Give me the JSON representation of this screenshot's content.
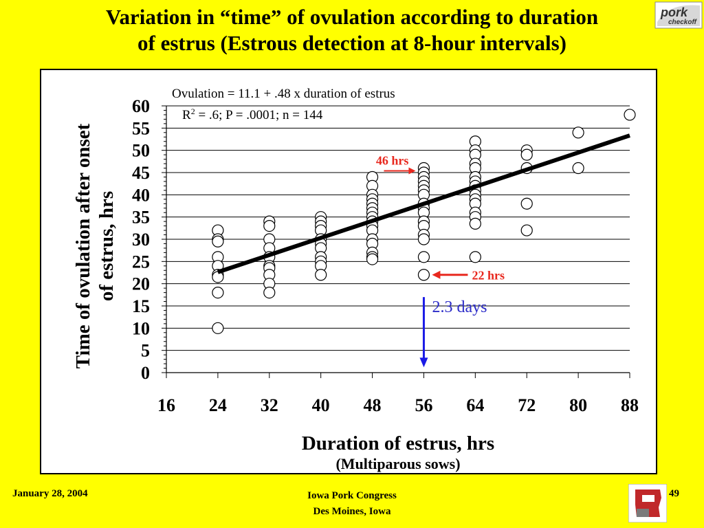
{
  "title": {
    "line1": "Variation in “time” of ovulation according to duration",
    "line2": "of estrus (Estrous detection at 8-hour intervals)"
  },
  "logo_text": "pork checkoff",
  "footer": {
    "date": "January 28, 2004",
    "event": "Iowa Pork Congress",
    "location": "Des Moines, Iowa",
    "page": "49"
  },
  "colors": {
    "background": "#FFFF00",
    "arrow_red": "#E8281E",
    "arrow_blue": "#1A1AE6",
    "annot_red_text": "#E8281E",
    "annot_blue_text": "#2B2BC8"
  },
  "chart_data": {
    "type": "scatter",
    "xlabel": "Duration of estrus, hrs",
    "xlabel_sub": "(Multiparous sows)",
    "ylabel_line1": "Time of ovulation after onset",
    "ylabel_line2": "of estrus, hrs",
    "xlim": [
      16,
      88
    ],
    "ylim": [
      0,
      60
    ],
    "x_ticks": [
      16,
      24,
      32,
      40,
      48,
      56,
      64,
      72,
      80,
      88
    ],
    "y_ticks": [
      0,
      5,
      10,
      15,
      20,
      25,
      30,
      35,
      40,
      45,
      50,
      55,
      60
    ],
    "grid": "horizontal",
    "equation": "Ovulation = 11.1 + .48 x duration of estrus",
    "stats": {
      "r2_label": "R",
      "r2_sup": "2",
      "rest": " = .6; P = .0001; n = 144"
    },
    "regression": {
      "intercept": 11.1,
      "slope": 0.48,
      "x_range": [
        24,
        88
      ]
    },
    "points": [
      {
        "x": 24,
        "y": 32
      },
      {
        "x": 24,
        "y": 30
      },
      {
        "x": 24,
        "y": 29.5
      },
      {
        "x": 24,
        "y": 26
      },
      {
        "x": 24,
        "y": 24
      },
      {
        "x": 24,
        "y": 22
      },
      {
        "x": 24,
        "y": 21.5
      },
      {
        "x": 24,
        "y": 18
      },
      {
        "x": 24,
        "y": 10
      },
      {
        "x": 32,
        "y": 34
      },
      {
        "x": 32,
        "y": 33
      },
      {
        "x": 32,
        "y": 30
      },
      {
        "x": 32,
        "y": 28
      },
      {
        "x": 32,
        "y": 26
      },
      {
        "x": 32,
        "y": 24
      },
      {
        "x": 32,
        "y": 23.5
      },
      {
        "x": 32,
        "y": 22
      },
      {
        "x": 32,
        "y": 20
      },
      {
        "x": 32,
        "y": 18
      },
      {
        "x": 40,
        "y": 35
      },
      {
        "x": 40,
        "y": 34
      },
      {
        "x": 40,
        "y": 33
      },
      {
        "x": 40,
        "y": 32
      },
      {
        "x": 40,
        "y": 30
      },
      {
        "x": 40,
        "y": 29
      },
      {
        "x": 40,
        "y": 28
      },
      {
        "x": 40,
        "y": 26
      },
      {
        "x": 40,
        "y": 25
      },
      {
        "x": 40,
        "y": 24
      },
      {
        "x": 40,
        "y": 22
      },
      {
        "x": 48,
        "y": 44
      },
      {
        "x": 48,
        "y": 42
      },
      {
        "x": 48,
        "y": 40
      },
      {
        "x": 48,
        "y": 39
      },
      {
        "x": 48,
        "y": 38
      },
      {
        "x": 48,
        "y": 37
      },
      {
        "x": 48,
        "y": 36
      },
      {
        "x": 48,
        "y": 35
      },
      {
        "x": 48,
        "y": 34
      },
      {
        "x": 48,
        "y": 33
      },
      {
        "x": 48,
        "y": 32
      },
      {
        "x": 48,
        "y": 30
      },
      {
        "x": 48,
        "y": 29
      },
      {
        "x": 48,
        "y": 27
      },
      {
        "x": 48,
        "y": 26
      },
      {
        "x": 48,
        "y": 25.5
      },
      {
        "x": 56,
        "y": 46
      },
      {
        "x": 56,
        "y": 45
      },
      {
        "x": 56,
        "y": 44
      },
      {
        "x": 56,
        "y": 43
      },
      {
        "x": 56,
        "y": 42
      },
      {
        "x": 56,
        "y": 41
      },
      {
        "x": 56,
        "y": 40
      },
      {
        "x": 56,
        "y": 38
      },
      {
        "x": 56,
        "y": 37
      },
      {
        "x": 56,
        "y": 36
      },
      {
        "x": 56,
        "y": 34
      },
      {
        "x": 56,
        "y": 33
      },
      {
        "x": 56,
        "y": 31
      },
      {
        "x": 56,
        "y": 30
      },
      {
        "x": 56,
        "y": 26
      },
      {
        "x": 56,
        "y": 22
      },
      {
        "x": 64,
        "y": 52
      },
      {
        "x": 64,
        "y": 50
      },
      {
        "x": 64,
        "y": 49
      },
      {
        "x": 64,
        "y": 47
      },
      {
        "x": 64,
        "y": 46
      },
      {
        "x": 64,
        "y": 44
      },
      {
        "x": 64,
        "y": 43
      },
      {
        "x": 64,
        "y": 42
      },
      {
        "x": 64,
        "y": 41
      },
      {
        "x": 64,
        "y": 40
      },
      {
        "x": 64,
        "y": 39
      },
      {
        "x": 64,
        "y": 38
      },
      {
        "x": 64,
        "y": 36
      },
      {
        "x": 64,
        "y": 35
      },
      {
        "x": 64,
        "y": 33.5
      },
      {
        "x": 64,
        "y": 26
      },
      {
        "x": 72,
        "y": 50
      },
      {
        "x": 72,
        "y": 49
      },
      {
        "x": 72,
        "y": 46
      },
      {
        "x": 72,
        "y": 38
      },
      {
        "x": 72,
        "y": 32
      },
      {
        "x": 80,
        "y": 54
      },
      {
        "x": 80,
        "y": 46
      },
      {
        "x": 88,
        "y": 58
      }
    ],
    "annotations": [
      {
        "label": "46 hrs",
        "color": "#E8281E",
        "x": 56,
        "y": 46,
        "type": "arrow-from-left"
      },
      {
        "label": "22 hrs",
        "color": "#E8281E",
        "x": 56,
        "y": 22,
        "type": "arrow-from-right"
      },
      {
        "label": "2.3 days",
        "color": "#1A1AE6",
        "x": 56,
        "y_from": 17,
        "y_to": 1.5,
        "type": "arrow-down"
      }
    ]
  }
}
